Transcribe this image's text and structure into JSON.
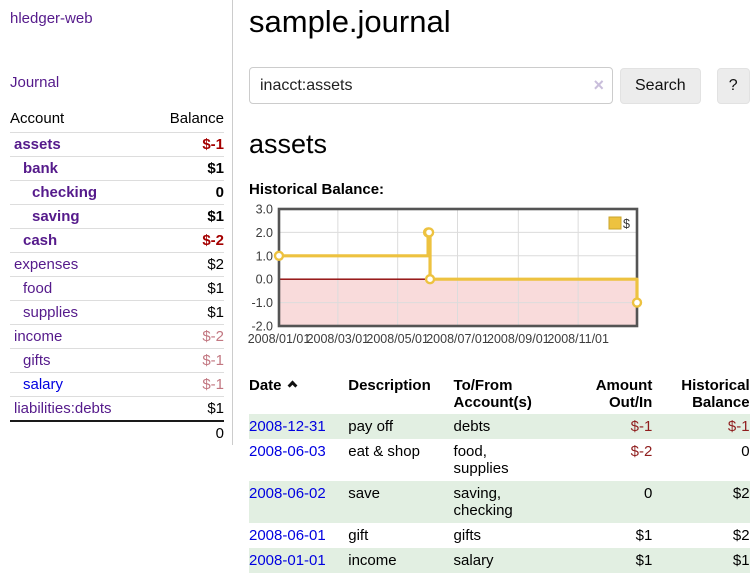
{
  "sidebar": {
    "app_title": "hledger-web",
    "nav": {
      "journal_label": "Journal"
    },
    "accounts_table": {
      "headers": {
        "account": "Account",
        "balance": "Balance"
      }
    },
    "accounts": [
      {
        "name": "assets",
        "depth": 1,
        "balance": "$-1",
        "inacct": true,
        "blue": false
      },
      {
        "name": "bank",
        "depth": 2,
        "balance": "$1",
        "inacct": true,
        "blue": false
      },
      {
        "name": "checking",
        "depth": 3,
        "balance": "0",
        "inacct": true,
        "blue": false
      },
      {
        "name": "saving",
        "depth": 3,
        "balance": "$1",
        "inacct": true,
        "blue": false
      },
      {
        "name": "cash",
        "depth": 2,
        "balance": "$-2",
        "inacct": true,
        "blue": false
      },
      {
        "name": "expenses",
        "depth": 1,
        "balance": "$2",
        "inacct": false,
        "blue": false
      },
      {
        "name": "food",
        "depth": 2,
        "balance": "$1",
        "inacct": false,
        "blue": false
      },
      {
        "name": "supplies",
        "depth": 2,
        "balance": "$1",
        "inacct": false,
        "blue": false
      },
      {
        "name": "income",
        "depth": 1,
        "balance": "$-2",
        "inacct": false,
        "blue": false
      },
      {
        "name": "gifts",
        "depth": 2,
        "balance": "$-1",
        "inacct": false,
        "blue": false
      },
      {
        "name": "salary",
        "depth": 2,
        "balance": "$-1",
        "inacct": false,
        "blue": true
      },
      {
        "name": "liabilities:debts",
        "depth": 1,
        "balance": "$1",
        "inacct": false,
        "blue": false
      }
    ],
    "total": "0"
  },
  "header": {
    "title": "sample.journal"
  },
  "search": {
    "query": "inacct:assets",
    "clear_icon": "×",
    "search_button": "Search",
    "help_button": "?"
  },
  "account_view": {
    "heading": "assets",
    "chart_label": "Historical Balance:"
  },
  "chart_data": {
    "type": "line",
    "title": "Historical Balance:",
    "step": true,
    "x_range": [
      "2008-01-01",
      "2008-12-31"
    ],
    "ylim": [
      -2,
      3
    ],
    "y_ticks": [
      3.0,
      2.0,
      1.0,
      0.0,
      -1.0,
      -2.0
    ],
    "x_ticks": [
      "2008/01/01",
      "2008/03/01",
      "2008/05/01",
      "2008/07/01",
      "2008/09/01",
      "2008/11/01"
    ],
    "series": [
      {
        "name": "$",
        "color": "#edc240",
        "marker_fill": "#ffffff",
        "points": [
          [
            "2008-01-01",
            1
          ],
          [
            "2008-06-01",
            2
          ],
          [
            "2008-06-02",
            2
          ],
          [
            "2008-06-03",
            0
          ],
          [
            "2008-12-31",
            -1
          ]
        ]
      }
    ],
    "grid": true,
    "grid_color": "#dcdcdc",
    "frame_color": "#545454",
    "zero_line_color": "#8b0000",
    "negative_region_color": "#f9dbdb",
    "legend": {
      "label": "$",
      "position": "top-right",
      "swatch_border": "#c9a42e"
    }
  },
  "register": {
    "columns": {
      "date": "Date",
      "description": "Description",
      "accounts": "To/From Account(s)",
      "amount": "Amount Out/In",
      "balance": "Historical Balance"
    },
    "rows": [
      {
        "date": "2008-12-31",
        "description": "pay off",
        "accounts": "debts",
        "amount": "$-1",
        "balance": "$-1"
      },
      {
        "date": "2008-06-03",
        "description": "eat & shop",
        "accounts": "food, supplies",
        "amount": "$-2",
        "balance": "0"
      },
      {
        "date": "2008-06-02",
        "description": "save",
        "accounts": "saving, checking",
        "amount": "0",
        "balance": "$2"
      },
      {
        "date": "2008-06-01",
        "description": "gift",
        "accounts": "gifts",
        "amount": "$1",
        "balance": "$2"
      },
      {
        "date": "2008-01-01",
        "description": "income",
        "accounts": "salary",
        "amount": "$1",
        "balance": "$1"
      }
    ]
  }
}
